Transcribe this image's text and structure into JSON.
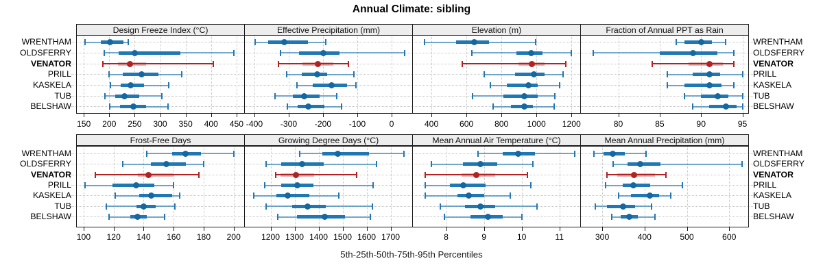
{
  "title": "Annual Climate: sibling",
  "caption": "5th-25th-50th-75th-95th Percentiles",
  "sites": [
    "WRENTHAM",
    "OLDSFERRY",
    "VENATOR",
    "PRILL",
    "KASKELA",
    "TUB",
    "BELSHAW"
  ],
  "highlight_site": "VENATOR",
  "colors": {
    "blue_whisker": "rgba(31,119,180,0.62)",
    "blue_cap": "#2077b4",
    "blue_iqr": "#1f77b4",
    "blue_dot": "#15689f",
    "red_whisker": "#b22222",
    "red_cap": "#b22222",
    "red_iqr": "rgba(178,34,34,0.33)",
    "red_dot": "#b22222",
    "strip_bg": "#ededed",
    "grid": "#c4c4c4",
    "border": "#1b1b1b"
  },
  "chart_data": {
    "type": "scatter",
    "variant": "percentile-interval-dotplot",
    "percentiles": [
      5,
      25,
      50,
      75,
      95
    ],
    "grid": "dotted",
    "legend_position": "none",
    "categories": [
      "WRENTHAM",
      "OLDSFERRY",
      "VENATOR",
      "PRILL",
      "KASKELA",
      "TUB",
      "BELSHAW"
    ],
    "highlight_category": "VENATOR",
    "panels": [
      {
        "title": "Design Freeze Index (°C)",
        "grid_row": 0,
        "grid_col": 0,
        "xlim": [
          135,
          465
        ],
        "ticks": [
          150,
          200,
          250,
          300,
          350,
          400,
          450
        ],
        "values": [
          [
            152,
            183,
            201,
            228,
            238
          ],
          [
            190,
            219,
            250,
            340,
            445
          ],
          [
            188,
            217,
            241,
            272,
            404
          ],
          [
            200,
            226,
            263,
            297,
            342
          ],
          [
            202,
            222,
            242,
            268,
            317
          ],
          [
            192,
            212,
            230,
            259,
            303
          ],
          [
            201,
            221,
            247,
            272,
            316
          ]
        ]
      },
      {
        "title": "Effective Precipitation (mm)",
        "grid_row": 0,
        "grid_col": 1,
        "xlim": [
          -430,
          60
        ],
        "ticks": [
          -400,
          -300,
          -200,
          -100,
          0
        ],
        "values": [
          [
            -398,
            -361,
            -314,
            -244,
            -192
          ],
          [
            -324,
            -270,
            -200,
            -153,
            38
          ],
          [
            -331,
            -260,
            -216,
            -170,
            -126
          ],
          [
            -307,
            -263,
            -218,
            -189,
            -110
          ],
          [
            -277,
            -230,
            -175,
            -130,
            -105
          ],
          [
            -341,
            -288,
            -256,
            -211,
            -161
          ],
          [
            -305,
            -274,
            -244,
            -196,
            -146
          ]
        ]
      },
      {
        "title": "Elevation (m)",
        "grid_row": 0,
        "grid_col": 2,
        "xlim": [
          290,
          1250
        ],
        "ticks": [
          400,
          600,
          800,
          1000,
          1200
        ],
        "values": [
          [
            360,
            540,
            645,
            730,
            995
          ],
          [
            630,
            885,
            970,
            1035,
            1200
          ],
          [
            575,
            897,
            975,
            1047,
            1168
          ],
          [
            700,
            878,
            984,
            1047,
            1153
          ],
          [
            735,
            832,
            953,
            1008,
            1131
          ],
          [
            635,
            813,
            932,
            1008,
            1105
          ],
          [
            753,
            856,
            930,
            980,
            1100
          ]
        ]
      },
      {
        "title": "Fraction of Annual PPT as Rain",
        "grid_row": 0,
        "grid_col": 3,
        "xlim": [
          75.4,
          95.7
        ],
        "ticks": [
          80,
          85,
          90,
          95
        ],
        "values": [
          [
            87,
            88,
            90,
            91.3,
            93
          ],
          [
            77,
            85,
            89,
            92,
            94
          ],
          [
            84.1,
            88.5,
            91,
            92.6,
            94
          ],
          [
            85.9,
            89,
            91,
            92.3,
            95
          ],
          [
            85.9,
            88,
            91,
            92.5,
            94
          ],
          [
            88,
            90,
            92,
            93.3,
            95
          ],
          [
            89,
            91,
            93,
            94.3,
            95
          ]
        ]
      },
      {
        "title": "Frost-Free Days",
        "grid_row": 1,
        "grid_col": 0,
        "xlim": [
          95,
          207
        ],
        "ticks": [
          100,
          120,
          140,
          160,
          180,
          200
        ],
        "values": [
          [
            142,
            159,
            168,
            178,
            200
          ],
          [
            126,
            145,
            155,
            168,
            180
          ],
          [
            108,
            136,
            143,
            160,
            177
          ],
          [
            101,
            119,
            135,
            147,
            160
          ],
          [
            121,
            137,
            145,
            159,
            164
          ],
          [
            115,
            135,
            140,
            148,
            161
          ],
          [
            117,
            131,
            136,
            142,
            154
          ]
        ]
      },
      {
        "title": "Growing Degree Days (°C)",
        "grid_row": 1,
        "grid_col": 1,
        "xlim": [
          1090,
          1790
        ],
        "ticks": [
          1200,
          1300,
          1400,
          1500,
          1600,
          1700
        ],
        "values": [
          [
            1320,
            1415,
            1480,
            1610,
            1755
          ],
          [
            1180,
            1245,
            1330,
            1420,
            1640
          ],
          [
            1220,
            1240,
            1305,
            1380,
            1558
          ],
          [
            1176,
            1243,
            1310,
            1380,
            1627
          ],
          [
            1130,
            1225,
            1270,
            1360,
            1485
          ],
          [
            1180,
            1290,
            1355,
            1430,
            1625
          ],
          [
            1230,
            1310,
            1425,
            1510,
            1615
          ]
        ]
      },
      {
        "title": "Mean Annual Air Temperature (°C)",
        "grid_row": 1,
        "grid_col": 2,
        "xlim": [
          7.1,
          11.55
        ],
        "ticks": [
          8,
          9,
          10,
          11
        ],
        "values": [
          [
            8.85,
            9.5,
            9.9,
            10.35,
            11.4
          ],
          [
            7.6,
            8.45,
            8.9,
            9.35,
            10.3
          ],
          [
            7.45,
            8.4,
            8.8,
            9.3,
            10.15
          ],
          [
            7.45,
            8.1,
            8.45,
            9.05,
            10.25
          ],
          [
            7.45,
            8.3,
            8.6,
            9.0,
            9.7
          ],
          [
            7.85,
            8.5,
            8.9,
            9.3,
            10.4
          ],
          [
            7.95,
            8.65,
            9.1,
            9.5,
            10.0
          ]
        ]
      },
      {
        "title": "Mean Annual Precipitation (mm)",
        "grid_row": 1,
        "grid_col": 3,
        "xlim": [
          248,
          645
        ],
        "ticks": [
          300,
          400,
          500,
          600
        ],
        "values": [
          [
            280,
            303,
            325,
            354,
            403
          ],
          [
            325,
            359,
            390,
            438,
            630
          ],
          [
            311,
            335,
            375,
            424,
            450
          ],
          [
            308,
            349,
            373,
            414,
            490
          ],
          [
            338,
            368,
            412,
            435,
            462
          ],
          [
            283,
            311,
            350,
            378,
            416
          ],
          [
            322,
            343,
            364,
            384,
            424
          ]
        ]
      }
    ]
  }
}
